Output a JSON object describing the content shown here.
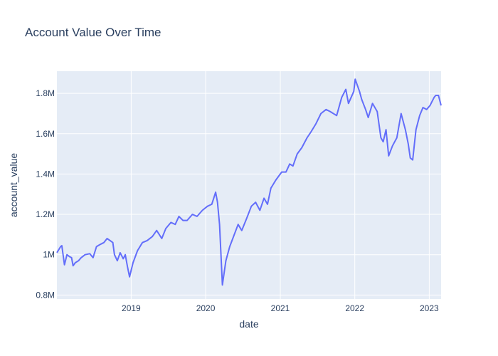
{
  "chart_data": {
    "type": "line",
    "title": "Account Value Over Time",
    "xlabel": "date",
    "ylabel": "account_value",
    "xlim": [
      "2018-01-02",
      "2023-02-28"
    ],
    "ylim": [
      780000,
      1910000
    ],
    "grid": true,
    "legend": "none",
    "colors": {
      "line": "#636efa",
      "plot_bg": "#e5ecf6",
      "grid": "#ffffff",
      "text": "#2a3f5f"
    },
    "x_ticks": [
      {
        "value": "2019-01-01",
        "label": "2019"
      },
      {
        "value": "2020-01-01",
        "label": "2020"
      },
      {
        "value": "2021-01-01",
        "label": "2021"
      },
      {
        "value": "2022-01-01",
        "label": "2022"
      },
      {
        "value": "2023-01-01",
        "label": "2023"
      }
    ],
    "y_ticks": [
      {
        "value": 800000,
        "label": "0.8M"
      },
      {
        "value": 1000000,
        "label": "1M"
      },
      {
        "value": 1200000,
        "label": "1.2M"
      },
      {
        "value": 1400000,
        "label": "1.4M"
      },
      {
        "value": 1600000,
        "label": "1.6M"
      },
      {
        "value": 1800000,
        "label": "1.8M"
      }
    ],
    "series": [
      {
        "x": [
          "2018-01-02",
          "2018-01-20",
          "2018-01-26",
          "2018-02-08",
          "2018-02-20",
          "2018-03-05",
          "2018-03-15",
          "2018-03-22",
          "2018-04-02",
          "2018-04-18",
          "2018-05-01",
          "2018-05-20",
          "2018-06-12",
          "2018-06-28",
          "2018-07-15",
          "2018-08-01",
          "2018-08-20",
          "2018-09-05",
          "2018-09-20",
          "2018-10-03",
          "2018-10-11",
          "2018-10-25",
          "2018-11-08",
          "2018-11-23",
          "2018-12-03",
          "2018-12-14",
          "2018-12-24",
          "2019-01-10",
          "2019-02-01",
          "2019-02-25",
          "2019-03-20",
          "2019-04-15",
          "2019-05-06",
          "2019-05-31",
          "2019-06-20",
          "2019-07-15",
          "2019-08-05",
          "2019-08-23",
          "2019-09-12",
          "2019-10-02",
          "2019-10-28",
          "2019-11-20",
          "2019-12-16",
          "2020-01-10",
          "2020-01-31",
          "2020-02-19",
          "2020-02-28",
          "2020-03-09",
          "2020-03-16",
          "2020-03-23",
          "2020-04-09",
          "2020-04-28",
          "2020-05-13",
          "2020-06-08",
          "2020-06-26",
          "2020-07-20",
          "2020-08-12",
          "2020-09-02",
          "2020-09-23",
          "2020-10-13",
          "2020-10-30",
          "2020-11-16",
          "2020-12-10",
          "2021-01-08",
          "2021-01-29",
          "2021-02-16",
          "2021-03-04",
          "2021-03-25",
          "2021-04-16",
          "2021-05-12",
          "2021-06-01",
          "2021-06-25",
          "2021-07-19",
          "2021-08-13",
          "2021-09-02",
          "2021-10-04",
          "2021-10-29",
          "2021-11-18",
          "2021-12-01",
          "2021-12-27",
          "2022-01-03",
          "2022-01-24",
          "2022-02-04",
          "2022-02-23",
          "2022-03-08",
          "2022-03-29",
          "2022-04-21",
          "2022-05-09",
          "2022-05-20",
          "2022-06-03",
          "2022-06-16",
          "2022-07-05",
          "2022-07-26",
          "2022-08-16",
          "2022-09-06",
          "2022-09-20",
          "2022-09-30",
          "2022-10-12",
          "2022-10-28",
          "2022-11-15",
          "2022-12-01",
          "2022-12-19",
          "2023-01-05",
          "2023-01-25",
          "2023-02-02",
          "2023-02-15",
          "2023-02-28"
        ],
        "y": [
          1010000,
          1040000,
          1045000,
          950000,
          1000000,
          990000,
          985000,
          945000,
          960000,
          970000,
          985000,
          1000000,
          1005000,
          985000,
          1040000,
          1050000,
          1060000,
          1080000,
          1070000,
          1060000,
          1000000,
          970000,
          1010000,
          980000,
          1000000,
          940000,
          890000,
          960000,
          1020000,
          1060000,
          1070000,
          1090000,
          1120000,
          1080000,
          1130000,
          1160000,
          1150000,
          1190000,
          1170000,
          1170000,
          1200000,
          1190000,
          1220000,
          1240000,
          1250000,
          1310000,
          1260000,
          1150000,
          1000000,
          850000,
          970000,
          1040000,
          1080000,
          1150000,
          1120000,
          1180000,
          1240000,
          1260000,
          1220000,
          1280000,
          1250000,
          1330000,
          1370000,
          1410000,
          1410000,
          1450000,
          1440000,
          1500000,
          1530000,
          1580000,
          1610000,
          1650000,
          1700000,
          1720000,
          1710000,
          1690000,
          1780000,
          1820000,
          1750000,
          1810000,
          1870000,
          1810000,
          1770000,
          1720000,
          1680000,
          1750000,
          1710000,
          1580000,
          1560000,
          1620000,
          1490000,
          1540000,
          1580000,
          1700000,
          1620000,
          1550000,
          1480000,
          1470000,
          1620000,
          1690000,
          1730000,
          1720000,
          1740000,
          1780000,
          1790000,
          1790000,
          1740000
        ]
      }
    ]
  }
}
